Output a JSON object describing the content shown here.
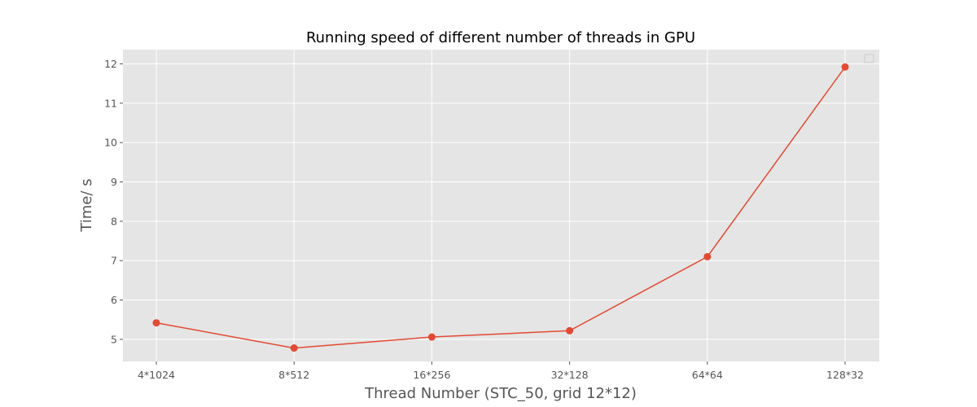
{
  "chart_data": {
    "type": "line",
    "title": "Running speed of different number of threads in GPU",
    "xlabel": "Thread Number (STC_50, grid 12*12)",
    "ylabel": "Time/ s",
    "categories": [
      "4*1024",
      "8*512",
      "16*256",
      "32*128",
      "64*64",
      "128*32"
    ],
    "series": [
      {
        "values": [
          5.42,
          4.78,
          5.06,
          5.22,
          7.1,
          11.92
        ]
      }
    ],
    "ylim": [
      4.44,
      12.36
    ],
    "yticks": [
      5,
      6,
      7,
      8,
      9,
      10,
      11,
      12
    ],
    "grid": true,
    "legend": "top-right",
    "colors": {
      "background": "#e5e5e5",
      "grid": "#ffffff",
      "line": "#e24a33",
      "text": "#555555"
    }
  }
}
